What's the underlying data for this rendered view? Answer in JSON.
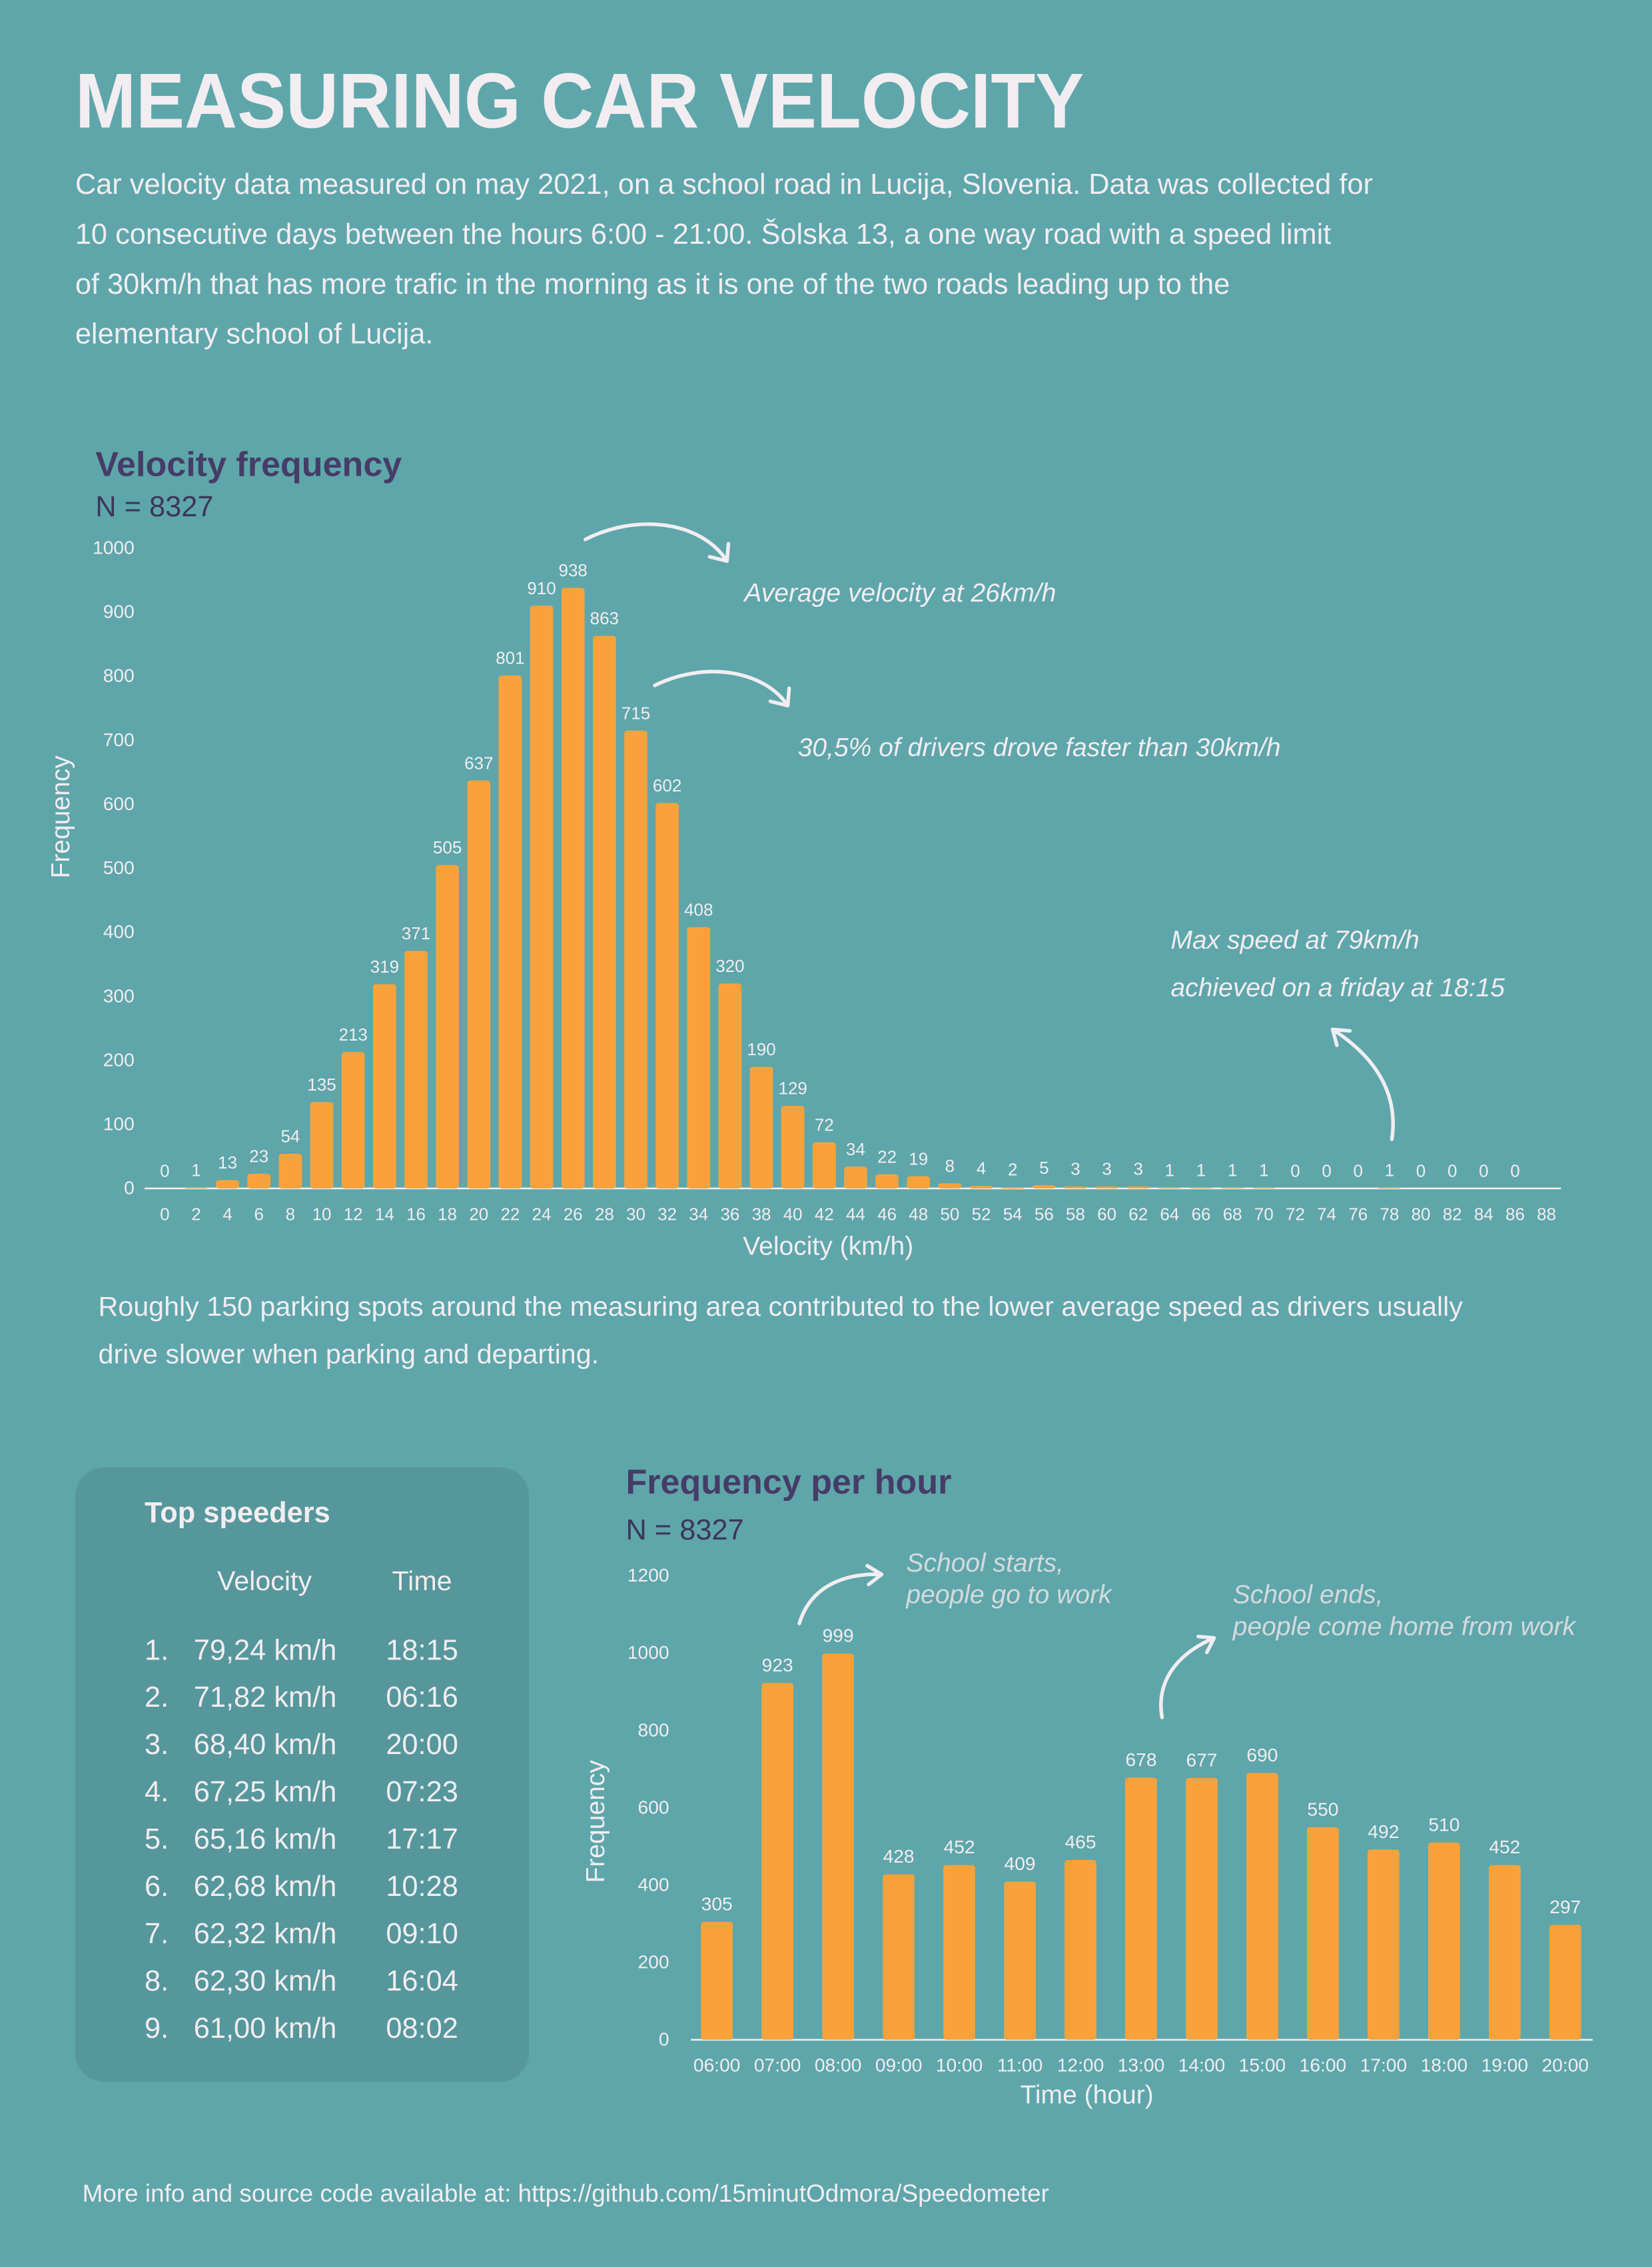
{
  "title": "MEASURING CAR VELOCITY",
  "description": [
    "Car velocity data measured on may 2021, on a school road in Lucija, Slovenia. Data was collected for",
    "10 consecutive days between the hours 6:00 - 21:00. Šolska 13, a one way road with a speed limit",
    "of 30km/h that has more trafic in the morning as it is one of the two roads leading up to the",
    "elementary school of Lucija."
  ],
  "chart_data": [
    {
      "type": "bar",
      "title": "Velocity frequency",
      "subtitle": "N = 8327",
      "x_label": "Velocity (km/h)",
      "y_label": "Frequency",
      "x": [
        0,
        2,
        4,
        6,
        8,
        10,
        12,
        14,
        16,
        18,
        20,
        22,
        24,
        26,
        28,
        30,
        32,
        34,
        36,
        38,
        40,
        42,
        44,
        46,
        48,
        50,
        52,
        54,
        56,
        58,
        60,
        62,
        64,
        66,
        68,
        70,
        72,
        74,
        76,
        78,
        80,
        82,
        84,
        86
      ],
      "values": [
        0,
        1,
        13,
        23,
        54,
        135,
        213,
        319,
        371,
        505,
        637,
        801,
        910,
        938,
        863,
        715,
        602,
        408,
        320,
        190,
        129,
        72,
        34,
        22,
        19,
        8,
        4,
        2,
        5,
        3,
        3,
        3,
        1,
        1,
        1,
        1,
        0,
        0,
        0,
        1,
        0,
        0,
        0,
        0
      ],
      "color": "#f9a23b",
      "xlim": [
        -1,
        89
      ],
      "xticks": [
        0,
        2,
        4,
        6,
        8,
        10,
        12,
        14,
        16,
        18,
        20,
        22,
        24,
        26,
        28,
        30,
        32,
        34,
        36,
        38,
        40,
        42,
        44,
        46,
        48,
        50,
        52,
        54,
        56,
        58,
        60,
        62,
        64,
        66,
        68,
        70,
        72,
        74,
        76,
        78,
        80,
        82,
        84,
        86,
        88
      ],
      "ylim": [
        0,
        1000
      ],
      "yticks": [
        0,
        100,
        200,
        300,
        400,
        500,
        600,
        700,
        800,
        900,
        1000
      ],
      "annotations": [
        [
          "Average velocity at 26km/h"
        ],
        [
          "30,5% of drivers drove faster than 30km/h"
        ],
        [
          "Max speed at 79km/h",
          "achieved on a friday at 18:15"
        ]
      ]
    },
    {
      "type": "bar",
      "title": "Frequency per hour",
      "subtitle": "N = 8327",
      "x_label": "Time (hour)",
      "y_label": "Frequency",
      "categories": [
        "06:00",
        "07:00",
        "08:00",
        "09:00",
        "10:00",
        "11:00",
        "12:00",
        "13:00",
        "14:00",
        "15:00",
        "16:00",
        "17:00",
        "18:00",
        "19:00",
        "20:00"
      ],
      "values": [
        305,
        923,
        999,
        428,
        452,
        409,
        465,
        678,
        677,
        690,
        550,
        492,
        510,
        452,
        297
      ],
      "color": "#f9a23b",
      "ylim": [
        0,
        1200
      ],
      "yticks": [
        0,
        200,
        400,
        600,
        800,
        1000,
        1200
      ],
      "annotations": [
        [
          "School starts,",
          "people go to work"
        ],
        [
          "School ends,",
          "people come home from work"
        ]
      ]
    }
  ],
  "note": [
    "Roughly 150 parking spots around the measuring area contributed to the lower average speed as drivers usually",
    "drive slower when parking and departing."
  ],
  "top_speeders": {
    "title": "Top speeders",
    "columns": [
      "Velocity",
      "Time"
    ],
    "rows": [
      [
        "1.",
        "79,24 km/h",
        "18:15"
      ],
      [
        "2.",
        "71,82  km/h",
        "06:16"
      ],
      [
        "3.",
        "68,40  km/h",
        "20:00"
      ],
      [
        "4.",
        "67,25  km/h",
        "07:23"
      ],
      [
        "5.",
        "65,16  km/h",
        "17:17"
      ],
      [
        "6.",
        "62,68  km/h",
        "10:28"
      ],
      [
        "7.",
        "62,32  km/h",
        "09:10"
      ],
      [
        "8.",
        "62,30  km/h",
        "16:04"
      ],
      [
        "9.",
        "61,00  km/h",
        "08:02"
      ]
    ]
  },
  "footer": "More info and source code available at: https://github.com/15minutOdmora/Speedometer"
}
